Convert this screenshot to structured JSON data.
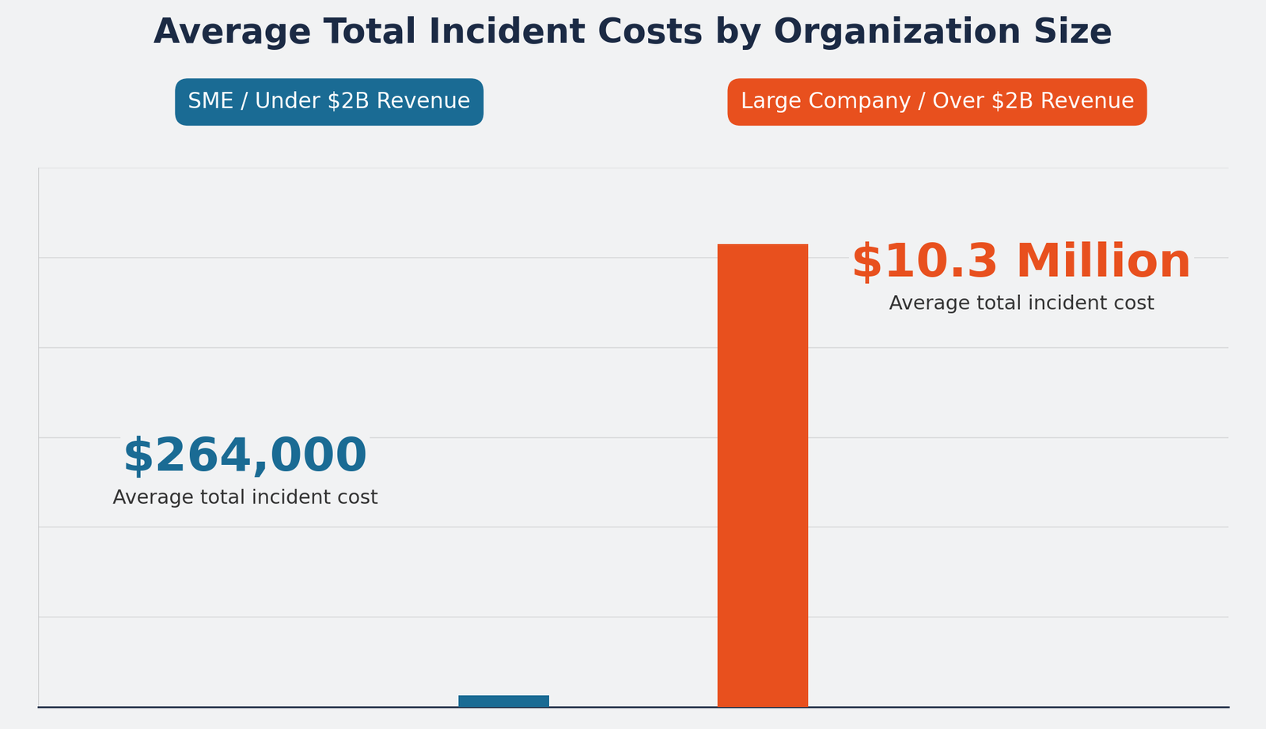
{
  "chart_data": {
    "type": "bar",
    "title": "Average Total Incident Costs by Organization Size",
    "categories": [
      "SME / Under $2B Revenue",
      "Large Company / Over $2B Revenue"
    ],
    "values": [
      264000,
      10300000
    ],
    "value_labels": [
      "$264,000",
      "$10.3 Million"
    ],
    "annotation": "Average total incident cost",
    "colors": [
      "#1a6b94",
      "#e8501e"
    ],
    "ylim": [
      0,
      12000000
    ],
    "yticks": [
      0,
      2000000,
      4000000,
      6000000,
      8000000,
      10000000,
      12000000
    ],
    "grid": true,
    "data_labels": true,
    "tick_labels": false
  }
}
